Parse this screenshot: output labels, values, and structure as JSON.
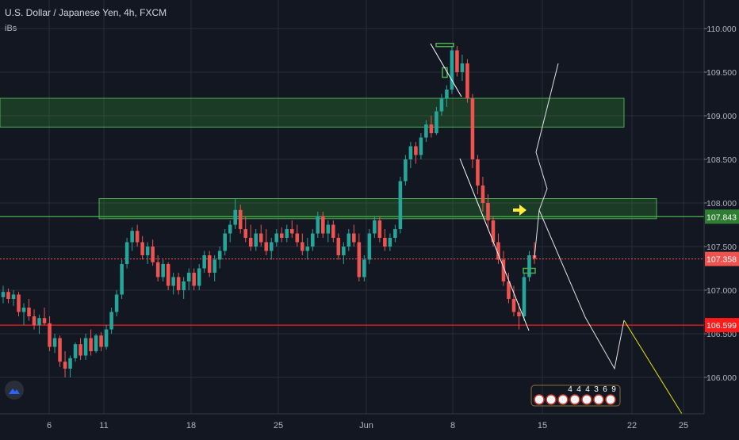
{
  "header": {
    "title": "U.S. Dollar / Japanese Yen, 4h, FXCM",
    "indicator": "iBs"
  },
  "colors": {
    "background": "#131722",
    "grid": "#2a2e39",
    "up": "#26a69a",
    "down": "#ef5350",
    "zone": "#2e7d32",
    "zone_border": "#4caf50",
    "support": "#ff1a1a",
    "projection_white": "#e0e0e0",
    "projection_yellow": "#e6e600",
    "arrow": "#ffeb3b"
  },
  "chart_data": {
    "type": "candlestick",
    "symbol": "U.S. Dollar / Japanese Yen, 4h, FXCM",
    "timeframe": "4h",
    "ylim": [
      105.8,
      110.1
    ],
    "y_ticks": [
      "110.000",
      "109.500",
      "109.000",
      "108.500",
      "108.000",
      "107.500",
      "107.000",
      "106.500",
      "106.000"
    ],
    "x_ticks": [
      "6",
      "11",
      "18",
      "25",
      "Jun",
      "8",
      "15",
      "22",
      "25"
    ],
    "price_labels": [
      {
        "text": "107.843",
        "value": 107.843,
        "color": "#2e7d32"
      },
      {
        "text": "107.358",
        "value": 107.358,
        "color": "#ef5350"
      },
      {
        "text": "106.599",
        "value": 106.599,
        "color": "#ff1a1a"
      }
    ],
    "zones": [
      {
        "low": 108.87,
        "high": 109.2
      },
      {
        "low": 107.82,
        "high": 108.05
      }
    ],
    "horizontal_lines": [
      {
        "value": 107.843,
        "style": "solid",
        "color": "#4caf50"
      },
      {
        "value": 107.358,
        "style": "dotted",
        "color": "#ef5350"
      },
      {
        "value": 106.599,
        "style": "solid",
        "color": "#ff1a1a"
      }
    ],
    "candles": [
      [
        106.92,
        107.05,
        106.85,
        106.98
      ],
      [
        106.98,
        107.02,
        106.85,
        106.9
      ],
      [
        106.9,
        107.0,
        106.82,
        106.95
      ],
      [
        106.95,
        106.98,
        106.7,
        106.75
      ],
      [
        106.75,
        106.85,
        106.6,
        106.8
      ],
      [
        106.8,
        106.9,
        106.65,
        106.7
      ],
      [
        106.7,
        106.78,
        106.55,
        106.6
      ],
      [
        106.6,
        106.72,
        106.5,
        106.68
      ],
      [
        106.68,
        106.8,
        106.6,
        106.62
      ],
      [
        106.62,
        106.7,
        106.3,
        106.35
      ],
      [
        106.35,
        106.5,
        106.28,
        106.45
      ],
      [
        106.45,
        106.48,
        106.12,
        106.18
      ],
      [
        106.18,
        106.3,
        106.0,
        106.1
      ],
      [
        106.1,
        106.25,
        106.0,
        106.22
      ],
      [
        106.22,
        106.4,
        106.18,
        106.38
      ],
      [
        106.38,
        106.45,
        106.2,
        106.25
      ],
      [
        106.25,
        106.5,
        106.2,
        106.45
      ],
      [
        106.45,
        106.55,
        106.25,
        106.3
      ],
      [
        106.3,
        106.5,
        106.28,
        106.48
      ],
      [
        106.48,
        106.52,
        106.3,
        106.35
      ],
      [
        106.35,
        106.6,
        106.32,
        106.55
      ],
      [
        106.55,
        106.8,
        106.5,
        106.75
      ],
      [
        106.75,
        107.0,
        106.7,
        106.95
      ],
      [
        106.95,
        107.35,
        106.9,
        107.3
      ],
      [
        107.3,
        107.6,
        107.25,
        107.55
      ],
      [
        107.55,
        107.72,
        107.45,
        107.68
      ],
      [
        107.68,
        107.75,
        107.5,
        107.55
      ],
      [
        107.55,
        107.62,
        107.35,
        107.4
      ],
      [
        107.4,
        107.55,
        107.3,
        107.5
      ],
      [
        107.5,
        107.58,
        107.28,
        107.32
      ],
      [
        107.32,
        107.4,
        107.1,
        107.15
      ],
      [
        107.15,
        107.35,
        107.1,
        107.3
      ],
      [
        107.3,
        107.32,
        107.0,
        107.05
      ],
      [
        107.05,
        107.2,
        106.95,
        107.15
      ],
      [
        107.15,
        107.2,
        106.95,
        107.0
      ],
      [
        107.0,
        107.15,
        106.9,
        107.1
      ],
      [
        107.1,
        107.25,
        107.0,
        107.2
      ],
      [
        107.2,
        107.25,
        107.0,
        107.05
      ],
      [
        107.05,
        107.3,
        107.0,
        107.25
      ],
      [
        107.25,
        107.45,
        107.2,
        107.4
      ],
      [
        107.4,
        107.45,
        107.15,
        107.2
      ],
      [
        107.2,
        107.4,
        107.1,
        107.35
      ],
      [
        107.35,
        107.5,
        107.25,
        107.45
      ],
      [
        107.45,
        107.7,
        107.4,
        107.65
      ],
      [
        107.65,
        107.8,
        107.55,
        107.75
      ],
      [
        107.75,
        108.05,
        107.7,
        107.92
      ],
      [
        107.92,
        107.98,
        107.65,
        107.7
      ],
      [
        107.7,
        107.85,
        107.55,
        107.6
      ],
      [
        107.6,
        107.75,
        107.45,
        107.5
      ],
      [
        107.5,
        107.7,
        107.45,
        107.65
      ],
      [
        107.65,
        107.75,
        107.5,
        107.55
      ],
      [
        107.55,
        107.7,
        107.4,
        107.45
      ],
      [
        107.45,
        107.6,
        107.35,
        107.55
      ],
      [
        107.55,
        107.7,
        107.5,
        107.65
      ],
      [
        107.65,
        107.72,
        107.55,
        107.6
      ],
      [
        107.6,
        107.75,
        107.55,
        107.7
      ],
      [
        107.7,
        107.8,
        107.6,
        107.65
      ],
      [
        107.65,
        107.75,
        107.5,
        107.55
      ],
      [
        107.55,
        107.65,
        107.4,
        107.45
      ],
      [
        107.45,
        107.6,
        107.35,
        107.5
      ],
      [
        107.5,
        107.7,
        107.45,
        107.65
      ],
      [
        107.65,
        107.9,
        107.6,
        107.85
      ],
      [
        107.85,
        107.9,
        107.6,
        107.65
      ],
      [
        107.65,
        107.8,
        107.55,
        107.75
      ],
      [
        107.75,
        107.8,
        107.55,
        107.6
      ],
      [
        107.6,
        107.65,
        107.35,
        107.4
      ],
      [
        107.4,
        107.55,
        107.3,
        107.5
      ],
      [
        107.5,
        107.7,
        107.45,
        107.65
      ],
      [
        107.65,
        107.75,
        107.5,
        107.55
      ],
      [
        107.55,
        107.65,
        107.1,
        107.15
      ],
      [
        107.15,
        107.4,
        107.1,
        107.35
      ],
      [
        107.35,
        107.7,
        107.3,
        107.65
      ],
      [
        107.65,
        107.85,
        107.6,
        107.8
      ],
      [
        107.8,
        107.85,
        107.55,
        107.6
      ],
      [
        107.6,
        107.7,
        107.45,
        107.5
      ],
      [
        107.5,
        107.65,
        107.45,
        107.6
      ],
      [
        107.6,
        107.75,
        107.55,
        107.7
      ],
      [
        107.7,
        108.3,
        107.65,
        108.25
      ],
      [
        108.25,
        108.55,
        108.2,
        108.5
      ],
      [
        108.5,
        108.7,
        108.4,
        108.65
      ],
      [
        108.65,
        108.7,
        108.45,
        108.55
      ],
      [
        108.55,
        108.8,
        108.5,
        108.75
      ],
      [
        108.75,
        108.95,
        108.7,
        108.9
      ],
      [
        108.9,
        109.0,
        108.75,
        108.8
      ],
      [
        108.8,
        109.1,
        108.78,
        109.05
      ],
      [
        109.05,
        109.25,
        109.0,
        109.2
      ],
      [
        109.2,
        109.35,
        109.1,
        109.3
      ],
      [
        109.3,
        109.8,
        109.25,
        109.75
      ],
      [
        109.75,
        109.8,
        109.45,
        109.5
      ],
      [
        109.5,
        109.7,
        109.4,
        109.6
      ],
      [
        109.6,
        109.65,
        109.15,
        109.2
      ],
      [
        109.2,
        109.25,
        108.4,
        108.5
      ],
      [
        108.5,
        108.55,
        108.1,
        108.2
      ],
      [
        108.2,
        108.3,
        107.9,
        108.0
      ],
      [
        108.0,
        108.1,
        107.7,
        107.8
      ],
      [
        107.8,
        107.85,
        107.5,
        107.55
      ],
      [
        107.55,
        107.65,
        107.3,
        107.35
      ],
      [
        107.35,
        107.45,
        107.05,
        107.1
      ],
      [
        107.1,
        107.2,
        106.85,
        106.9
      ],
      [
        106.9,
        107.05,
        106.7,
        106.75
      ],
      [
        106.75,
        106.85,
        106.55,
        106.7
      ],
      [
        106.7,
        107.2,
        106.65,
        107.15
      ],
      [
        107.15,
        107.45,
        107.1,
        107.4
      ],
      [
        107.4,
        107.55,
        107.3,
        107.36
      ]
    ],
    "projection_white": [
      [
        107.36,
        "now"
      ],
      [
        107.9,
        "+3"
      ],
      [
        107.6,
        "+8"
      ],
      [
        106.65,
        "+14"
      ],
      [
        106.1,
        "+19"
      ]
    ],
    "projection_yellow": [
      [
        106.1,
        "+19"
      ],
      [
        106.6,
        "+21"
      ],
      [
        105.6,
        "+28"
      ]
    ],
    "events_badge_text": "4 4 4 3 6 9"
  }
}
